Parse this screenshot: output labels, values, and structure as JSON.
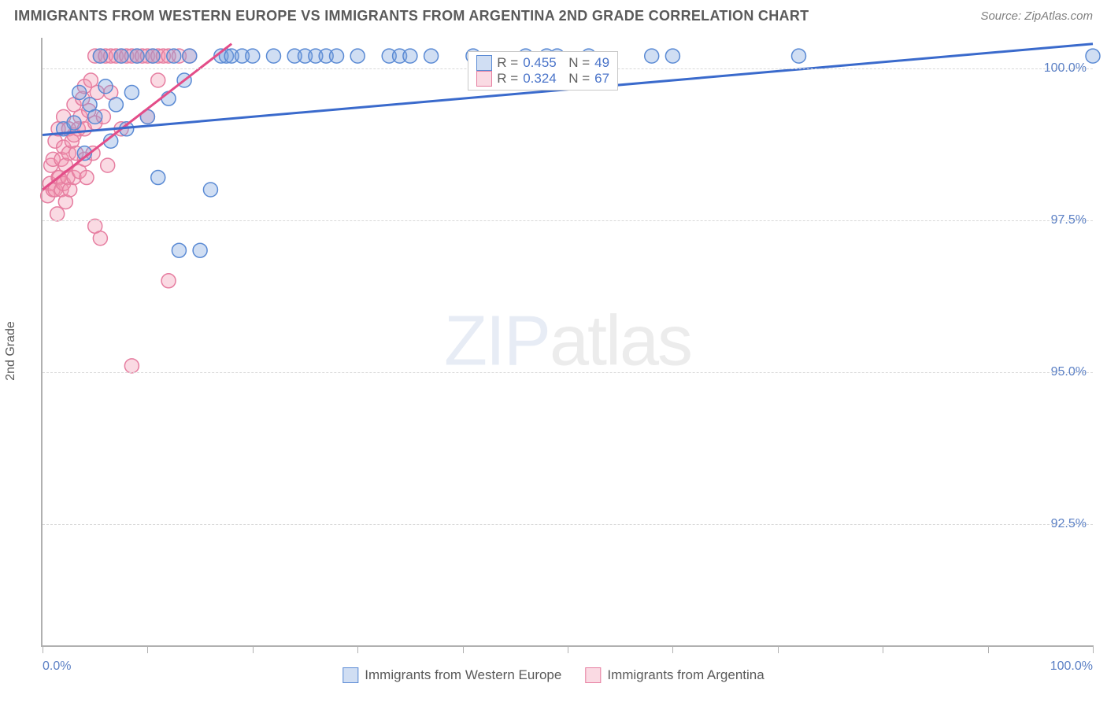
{
  "header": {
    "title": "IMMIGRANTS FROM WESTERN EUROPE VS IMMIGRANTS FROM ARGENTINA 2ND GRADE CORRELATION CHART",
    "source": "Source: ZipAtlas.com"
  },
  "chart": {
    "type": "scatter",
    "ylabel": "2nd Grade",
    "watermark_bold": "ZIP",
    "watermark_thin": "atlas",
    "xlim": [
      0,
      100
    ],
    "ylim": [
      90.5,
      100.5
    ],
    "xtick_positions": [
      0,
      10,
      20,
      30,
      40,
      50,
      60,
      70,
      80,
      90,
      100
    ],
    "xtick_labels": {
      "0": "0.0%",
      "100": "100.0%"
    },
    "ytick_positions": [
      92.5,
      95.0,
      97.5,
      100.0
    ],
    "ytick_labels": [
      "92.5%",
      "95.0%",
      "97.5%",
      "100.0%"
    ],
    "grid_color": "#d8d8d8",
    "axis_color": "#b0b0b0",
    "background_color": "#ffffff",
    "marker_radius": 9,
    "marker_stroke_width": 1.5,
    "line_width": 3,
    "series": {
      "blue": {
        "label": "Immigrants from Western Europe",
        "fill": "rgba(120,160,220,0.35)",
        "stroke": "#5a8ad4",
        "line_color": "#3a6acc",
        "R": "0.455",
        "N": "49",
        "trend": {
          "x1": 0,
          "y1": 98.9,
          "x2": 100,
          "y2": 100.4
        },
        "points": [
          [
            2,
            99.0
          ],
          [
            3,
            99.1
          ],
          [
            3.5,
            99.6
          ],
          [
            4,
            98.6
          ],
          [
            4.5,
            99.4
          ],
          [
            5,
            99.2
          ],
          [
            5.5,
            100.2
          ],
          [
            6,
            99.7
          ],
          [
            6.5,
            98.8
          ],
          [
            7,
            99.4
          ],
          [
            7.5,
            100.2
          ],
          [
            8,
            99.0
          ],
          [
            8.5,
            99.6
          ],
          [
            9,
            100.2
          ],
          [
            10,
            99.2
          ],
          [
            10.5,
            100.2
          ],
          [
            11,
            98.2
          ],
          [
            12,
            99.5
          ],
          [
            12.5,
            100.2
          ],
          [
            13,
            97.0
          ],
          [
            13.5,
            99.8
          ],
          [
            14,
            100.2
          ],
          [
            15,
            97.0
          ],
          [
            16,
            98.0
          ],
          [
            17,
            100.2
          ],
          [
            17.5,
            100.2
          ],
          [
            18,
            100.2
          ],
          [
            19,
            100.2
          ],
          [
            20,
            100.2
          ],
          [
            22,
            100.2
          ],
          [
            24,
            100.2
          ],
          [
            25,
            100.2
          ],
          [
            26,
            100.2
          ],
          [
            27,
            100.2
          ],
          [
            28,
            100.2
          ],
          [
            30,
            100.2
          ],
          [
            33,
            100.2
          ],
          [
            34,
            100.2
          ],
          [
            35,
            100.2
          ],
          [
            37,
            100.2
          ],
          [
            41,
            100.2
          ],
          [
            46,
            100.2
          ],
          [
            48,
            100.2
          ],
          [
            49,
            100.2
          ],
          [
            52,
            100.2
          ],
          [
            58,
            100.2
          ],
          [
            60,
            100.2
          ],
          [
            72,
            100.2
          ],
          [
            100,
            100.2
          ]
        ]
      },
      "pink": {
        "label": "Immigrants from Argentina",
        "fill": "rgba(240,150,175,0.35)",
        "stroke": "#e67da0",
        "line_color": "#e34d88",
        "R": "0.324",
        "N": "67",
        "trend": {
          "x1": 0,
          "y1": 98.0,
          "x2": 18,
          "y2": 100.4
        },
        "points": [
          [
            0.5,
            97.9
          ],
          [
            0.7,
            98.1
          ],
          [
            0.8,
            98.4
          ],
          [
            1,
            98.0
          ],
          [
            1,
            98.5
          ],
          [
            1.2,
            98.0
          ],
          [
            1.2,
            98.8
          ],
          [
            1.4,
            97.6
          ],
          [
            1.5,
            98.2
          ],
          [
            1.5,
            99.0
          ],
          [
            1.6,
            98.2
          ],
          [
            1.8,
            98.0
          ],
          [
            1.8,
            98.5
          ],
          [
            2,
            98.1
          ],
          [
            2,
            98.7
          ],
          [
            2,
            99.2
          ],
          [
            2.2,
            97.8
          ],
          [
            2.2,
            98.4
          ],
          [
            2.4,
            98.2
          ],
          [
            2.5,
            98.6
          ],
          [
            2.5,
            99.0
          ],
          [
            2.6,
            98.0
          ],
          [
            2.8,
            98.8
          ],
          [
            3,
            98.2
          ],
          [
            3,
            98.9
          ],
          [
            3,
            99.4
          ],
          [
            3.2,
            98.6
          ],
          [
            3.4,
            99.0
          ],
          [
            3.5,
            98.3
          ],
          [
            3.6,
            99.2
          ],
          [
            3.8,
            99.5
          ],
          [
            4,
            98.5
          ],
          [
            4,
            99.0
          ],
          [
            4,
            99.7
          ],
          [
            4.2,
            98.2
          ],
          [
            4.4,
            99.3
          ],
          [
            4.6,
            99.8
          ],
          [
            4.8,
            98.6
          ],
          [
            5,
            97.4
          ],
          [
            5,
            99.1
          ],
          [
            5,
            100.2
          ],
          [
            5.2,
            99.6
          ],
          [
            5.5,
            97.2
          ],
          [
            5.5,
            100.2
          ],
          [
            5.8,
            99.2
          ],
          [
            6,
            100.2
          ],
          [
            6.2,
            98.4
          ],
          [
            6.5,
            99.6
          ],
          [
            6.5,
            100.2
          ],
          [
            7,
            100.2
          ],
          [
            7.5,
            99.0
          ],
          [
            7.5,
            100.2
          ],
          [
            8,
            100.2
          ],
          [
            8.5,
            95.1
          ],
          [
            8.5,
            100.2
          ],
          [
            9,
            100.2
          ],
          [
            9.5,
            100.2
          ],
          [
            10,
            99.2
          ],
          [
            10,
            100.2
          ],
          [
            10.5,
            100.2
          ],
          [
            11,
            99.8
          ],
          [
            11,
            100.2
          ],
          [
            11.5,
            100.2
          ],
          [
            12,
            96.5
          ],
          [
            12,
            100.2
          ],
          [
            13,
            100.2
          ],
          [
            14,
            100.2
          ]
        ]
      }
    },
    "legend_box": {
      "left_pct": 40.5,
      "rows": [
        {
          "swatch": "blue",
          "r_label": "R",
          "r_val": "0.455",
          "n_label": "N",
          "n_val": "49"
        },
        {
          "swatch": "pink",
          "r_label": "R",
          "r_val": "0.324",
          "n_label": "N",
          "n_val": "67"
        }
      ]
    },
    "bottom_legend": [
      {
        "swatch": "blue",
        "label": "Immigrants from Western Europe"
      },
      {
        "swatch": "pink",
        "label": "Immigrants from Argentina"
      }
    ]
  }
}
